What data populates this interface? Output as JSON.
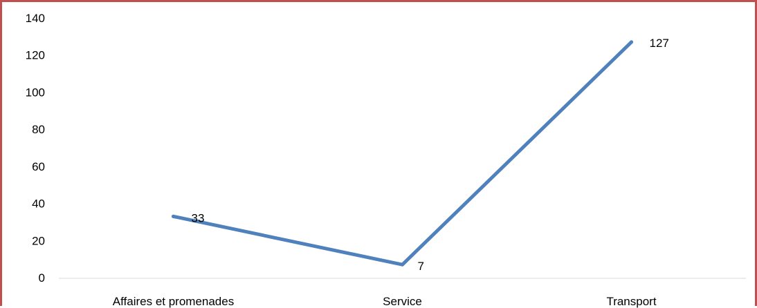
{
  "chart_data": {
    "type": "line",
    "title": "",
    "xlabel": "",
    "ylabel": "",
    "categories": [
      "Affaires et promenades",
      "Service",
      "Transport"
    ],
    "series": [
      {
        "values": [
          33,
          7,
          127
        ]
      }
    ],
    "data_labels": [
      "33",
      "7",
      "127"
    ],
    "ylim": [
      0,
      140
    ],
    "yticks": [
      0,
      20,
      40,
      60,
      80,
      100,
      120,
      140
    ],
    "grid": false,
    "legend": "none",
    "colors": {
      "line": "#4f81bd",
      "frame": "#c0504d",
      "axis": "#d9d9d9"
    }
  }
}
